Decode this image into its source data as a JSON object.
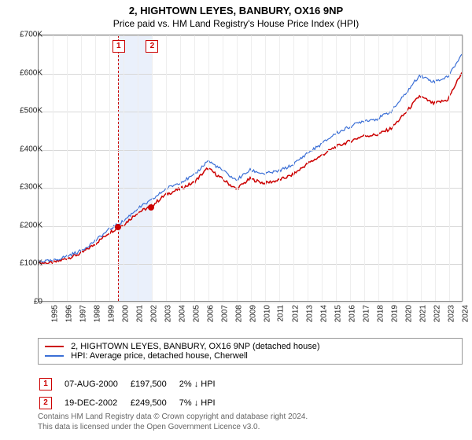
{
  "header": {
    "title": "2, HIGHTOWN LEYES, BANBURY, OX16 9NP",
    "subtitle": "Price paid vs. HM Land Registry's House Price Index (HPI)"
  },
  "chart": {
    "type": "line",
    "x_start_year": 1995,
    "x_end_year": 2025,
    "xtick_step": 1,
    "y_min": 0,
    "y_max": 700000,
    "ytick_step": 100000,
    "y_tick_labels": [
      "£0",
      "£100K",
      "£200K",
      "£300K",
      "£400K",
      "£500K",
      "£600K",
      "£700K"
    ],
    "background_color": "#ffffff",
    "grid_color_h": "#d8d8d8",
    "grid_color_v": "#eeeeee",
    "axis_font_size": 10,
    "series": [
      {
        "name": "price_paid",
        "color": "#cc0000",
        "width": 1.5,
        "label": "2, HIGHTOWN LEYES, BANBURY, OX16 9NP (detached house)",
        "values_by_year": {
          "1995": 100000,
          "1996": 100000,
          "1997": 112000,
          "1998": 125000,
          "1999": 150000,
          "2000": 180000,
          "2001": 200000,
          "2002": 232000,
          "2003": 250000,
          "2004": 280000,
          "2005": 295000,
          "2006": 312000,
          "2007": 350000,
          "2008": 322000,
          "2009": 295000,
          "2010": 322000,
          "2011": 310000,
          "2012": 318000,
          "2013": 332000,
          "2014": 360000,
          "2015": 382000,
          "2016": 405000,
          "2017": 420000,
          "2018": 435000,
          "2019": 438000,
          "2020": 455000,
          "2021": 495000,
          "2022": 540000,
          "2023": 520000,
          "2024": 530000,
          "2025": 602000
        }
      },
      {
        "name": "hpi",
        "color": "#3b6fd6",
        "width": 1.2,
        "label": "HPI: Average price, detached house, Cherwell",
        "values_by_year": {
          "1995": 105000,
          "1996": 105000,
          "1997": 118000,
          "1998": 132000,
          "1999": 158000,
          "2000": 188000,
          "2001": 210000,
          "2002": 243000,
          "2003": 265000,
          "2004": 295000,
          "2005": 312000,
          "2006": 330000,
          "2007": 370000,
          "2008": 345000,
          "2009": 318000,
          "2010": 345000,
          "2011": 335000,
          "2012": 342000,
          "2013": 358000,
          "2014": 388000,
          "2015": 412000,
          "2016": 440000,
          "2017": 458000,
          "2018": 475000,
          "2019": 480000,
          "2020": 500000,
          "2021": 545000,
          "2022": 595000,
          "2023": 578000,
          "2024": 590000,
          "2025": 650000
        }
      }
    ],
    "sale_band": {
      "start_year": 2000.6,
      "end_year": 2002.97,
      "fill": "#eaf0fb",
      "border": "#cc0000"
    },
    "sale_markers": [
      {
        "num": "1",
        "year": 2000.6,
        "price": 197500
      },
      {
        "num": "2",
        "year": 2002.97,
        "price": 249500
      }
    ]
  },
  "legend": {
    "items": [
      {
        "color": "#cc0000",
        "label": "2, HIGHTOWN LEYES, BANBURY, OX16 9NP (detached house)"
      },
      {
        "color": "#3b6fd6",
        "label": "HPI: Average price, detached house, Cherwell"
      }
    ]
  },
  "sales_table": {
    "rows": [
      {
        "num": "1",
        "date": "07-AUG-2000",
        "price": "£197,500",
        "delta": "2% ↓ HPI"
      },
      {
        "num": "2",
        "date": "19-DEC-2002",
        "price": "£249,500",
        "delta": "7% ↓ HPI"
      }
    ]
  },
  "license": {
    "line1": "Contains HM Land Registry data © Crown copyright and database right 2024.",
    "line2": "This data is licensed under the Open Government Licence v3.0."
  }
}
